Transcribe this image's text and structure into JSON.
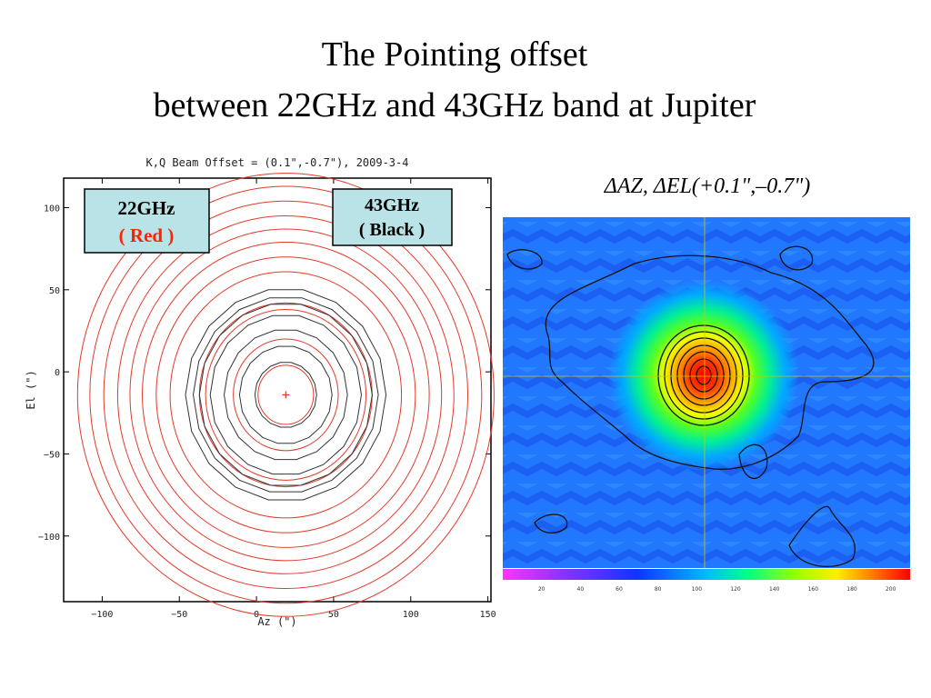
{
  "slide": {
    "title_line1": "The Pointing offset",
    "title_line2": "between 22GHz and 43GHz band at Jupiter"
  },
  "colors": {
    "red_band": "#e23a2a",
    "black_band": "#333333",
    "label_box_bg": "#b9e3e6",
    "red_label_text": "#ff2200"
  },
  "chart_data": [
    {
      "type": "contour",
      "title": "K,Q Beam Offset = (0.1\",-0.7\"), 2009-3-4",
      "xlabel": "Az (\")",
      "ylabel": "El (\")",
      "xlim": [
        -125,
        152
      ],
      "ylim": [
        -140,
        118
      ],
      "xticks": [
        -100,
        -50,
        0,
        50,
        100,
        150
      ],
      "yticks": [
        -100,
        -50,
        0,
        50,
        100
      ],
      "xtick_labels": [
        "−100",
        "−50",
        "0",
        "50",
        "100",
        "150"
      ],
      "ytick_labels": [
        "−100",
        "−50",
        "0",
        "50",
        "100"
      ],
      "center": [
        19,
        -14
      ],
      "series": [
        {
          "name": "22GHz",
          "color": "#e23a2a",
          "radii": [
            18,
            34,
            52,
            56,
            75,
            84,
            93,
            101,
            109,
            118,
            127,
            135
          ]
        },
        {
          "name": "43GHz",
          "color": "#333333",
          "radii": [
            20,
            30,
            40,
            49,
            56,
            60,
            65
          ]
        }
      ],
      "labels": {
        "red_line1": "22GHz",
        "red_line2": "( Red )",
        "black_line1": "43GHz",
        "black_line2": "( Black )"
      }
    },
    {
      "type": "heatmap",
      "title": "ΔAZ, ΔEL(+0.1\",–0.7\")",
      "colorbar_ticks": [
        20,
        40,
        60,
        80,
        100,
        120,
        140,
        160,
        180,
        200
      ],
      "colorbar_range": [
        0,
        210
      ]
    }
  ]
}
